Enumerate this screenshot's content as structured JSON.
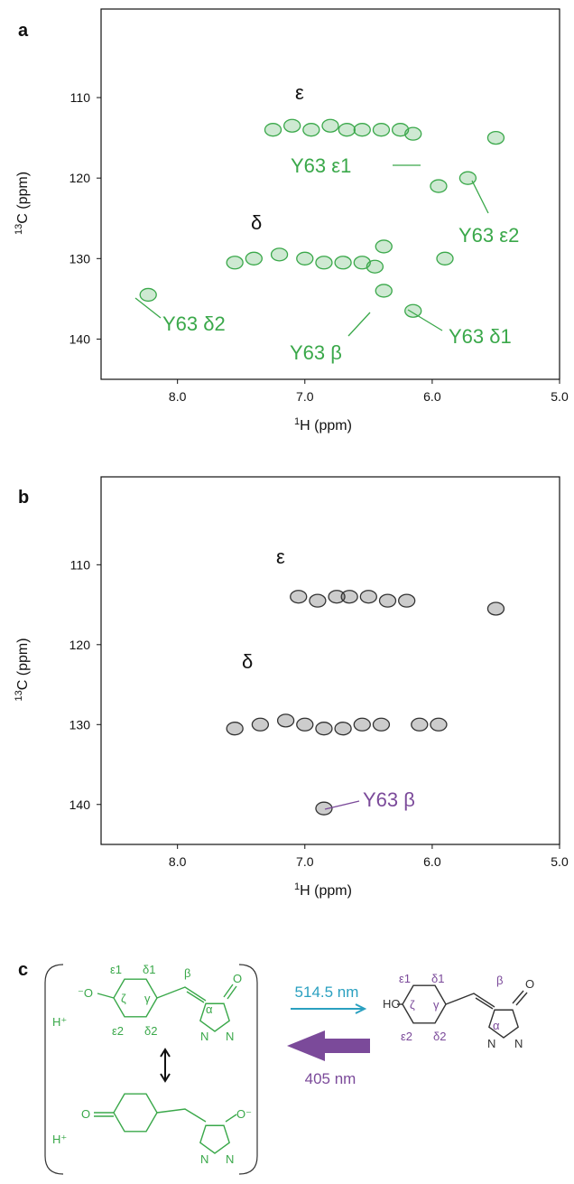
{
  "chart_data": [
    {
      "type": "scatter",
      "label": "a",
      "xlabel": {
        "sup": "1",
        "text": "H (ppm)"
      },
      "ylabel": {
        "sup": "13",
        "text": "C (ppm)"
      },
      "xlim": [
        8.6,
        5.0
      ],
      "ylim": [
        99,
        145
      ],
      "xticks": [
        {
          "value": 8,
          "label": "8.0"
        },
        {
          "value": 7,
          "label": "7.0"
        },
        {
          "value": 6,
          "label": "6.0"
        },
        {
          "value": 5,
          "label": "5.0"
        }
      ],
      "yticks": [
        110,
        120,
        130,
        140
      ],
      "series": [
        {
          "color": "#3aa84a",
          "x": [
            7.25,
            7.1,
            6.95,
            6.8,
            6.67,
            6.55,
            6.4,
            6.25,
            6.15,
            7.55,
            7.4,
            7.2,
            7.0,
            6.85,
            6.7,
            6.55,
            6.45,
            5.5,
            5.95,
            5.72,
            6.38,
            6.38,
            6.15,
            8.23,
            5.9
          ],
          "values": [
            114,
            113.5,
            114,
            113.5,
            114,
            114,
            114,
            114,
            114.5,
            130.5,
            130,
            129.5,
            130,
            130.5,
            130.5,
            130.5,
            131,
            115,
            121,
            120,
            128.5,
            134,
            136.5,
            134.5,
            130
          ]
        }
      ],
      "annotations": [
        "ε",
        "δ",
        "Y63 ε1",
        "Y63 ε2",
        "Y63 δ2",
        "Y63 β",
        "Y63 δ1"
      ]
    },
    {
      "type": "scatter",
      "label": "b",
      "xlabel": {
        "sup": "1",
        "text": "H (ppm)"
      },
      "ylabel": {
        "sup": "13",
        "text": "C (ppm)"
      },
      "xlim": [
        8.6,
        5.0
      ],
      "ylim": [
        99,
        145
      ],
      "xticks": [
        {
          "value": 8,
          "label": "8.0"
        },
        {
          "value": 7,
          "label": "7.0"
        },
        {
          "value": 6,
          "label": "6.0"
        },
        {
          "value": 5,
          "label": "5.0"
        }
      ],
      "yticks": [
        110,
        120,
        130,
        140
      ],
      "series": [
        {
          "color": "#333333",
          "x": [
            7.05,
            6.9,
            6.75,
            6.65,
            6.5,
            6.35,
            6.2,
            5.5,
            7.55,
            7.35,
            7.15,
            7.0,
            6.85,
            6.7,
            6.55,
            6.4,
            6.1,
            5.95,
            6.85
          ],
          "values": [
            114,
            114.5,
            114,
            114,
            114,
            114.5,
            114.5,
            115.5,
            130.5,
            130,
            129.5,
            130,
            130.5,
            130.5,
            130,
            130,
            130,
            130,
            140.5
          ]
        }
      ],
      "annotations": [
        "ε",
        "δ",
        "Y63 β"
      ]
    }
  ],
  "scheme": {
    "label": "c",
    "top_form": {
      "oxygen": "⁻O",
      "proton": "H⁺",
      "atoms": [
        "ε1",
        "δ1",
        "ζ",
        "γ",
        "ε2",
        "δ2",
        "β",
        "α"
      ],
      "carbonyl": "O",
      "nitrogens": [
        "N",
        "N"
      ]
    },
    "bottom_form": {
      "oxygen": "O",
      "proton": "H⁺",
      "enolate": "O⁻",
      "nitrogens": [
        "N",
        "N"
      ]
    },
    "product": {
      "hydroxyl": "HO",
      "atoms": [
        "ε1",
        "δ1",
        "ζ",
        "γ",
        "ε2",
        "δ2",
        "β",
        "α"
      ],
      "carbonyl": "O",
      "nitrogens": [
        "N",
        "N"
      ]
    },
    "forward_arrow": "514.5 nm",
    "reverse_arrow": "405 nm"
  }
}
